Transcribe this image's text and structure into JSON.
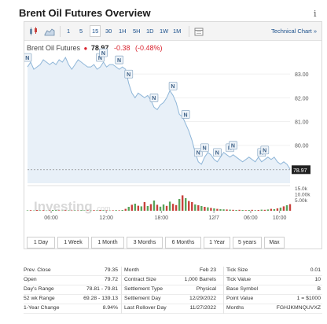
{
  "page": {
    "title": "Brent Oil Futures Overview",
    "info_icon": "i"
  },
  "toolbar": {
    "timeframes": [
      "1",
      "5",
      "15",
      "30",
      "1H",
      "5H",
      "1D",
      "1W",
      "1M"
    ],
    "active_timeframe": "15",
    "technical_link": "Technical Chart »",
    "icons": [
      "candlestick-icon",
      "area-chart-icon",
      "calendar-icon"
    ]
  },
  "symbol": {
    "name": "Brent Oil Futures",
    "price": "78.97",
    "change": "-0.38",
    "change_pct": "(-0.48%)"
  },
  "chart_data": {
    "type": "area",
    "series": [
      {
        "values": [
          83.3,
          83.5,
          83.2,
          83.3,
          83.4,
          83.6,
          83.5,
          83.4,
          83.5,
          83.4,
          83.6,
          83.5,
          83.7,
          83.4,
          83.2,
          83.4,
          83.6,
          83.5,
          83.4,
          83.3,
          83.3,
          83.4,
          83.2,
          83.3,
          83.5,
          83.3,
          83.4,
          83.4,
          83.3,
          83.2,
          83.3,
          83.2,
          82.6,
          82.2,
          82.0,
          82.2,
          82.1,
          82.0,
          82.1,
          81.9,
          81.6,
          81.5,
          81.7,
          81.8,
          82.0,
          82.3,
          82.1,
          81.8,
          81.3,
          81.2,
          80.9,
          80.6,
          80.2,
          79.7,
          79.3,
          79.2,
          79.5,
          79.7,
          79.6,
          79.4,
          79.3,
          79.5,
          79.7,
          79.6,
          79.5,
          79.6,
          79.5,
          79.4,
          79.3,
          79.4,
          79.5,
          79.4,
          79.3,
          79.5,
          79.3,
          79.4,
          79.5,
          79.4,
          79.5,
          79.3,
          79.2,
          79.3,
          79.2,
          79.0
        ]
      }
    ],
    "last_value": 78.97,
    "y_ticks": [
      "83.00",
      "82.00",
      "81.00",
      "80.00"
    ],
    "ylim": [
      78.4,
      83.7
    ],
    "x_ticks": [
      "06:00",
      "12:00",
      "18:00",
      "12/7",
      "06:00",
      "10:00"
    ],
    "volume_ticks": [
      "15.0k",
      "10.00k",
      "5.00k"
    ],
    "volume": [
      0.3,
      0.4,
      0.2,
      0.5,
      0.3,
      0.4,
      0.2,
      0.3,
      0.5,
      0.4,
      0.3,
      0.2,
      0.4,
      0.3,
      0.2,
      0.3,
      0.2,
      0.4,
      0.3,
      0.3,
      0.2,
      0.4,
      0.3,
      0.5,
      0.4,
      0.3,
      0.2,
      0.3,
      0.4,
      0.3,
      0.5,
      1.2,
      2.5,
      3.8,
      4.5,
      3.2,
      2.8,
      5.5,
      3.0,
      4.2,
      6.5,
      3.8,
      2.6,
      4.0,
      3.1,
      5.8,
      4.4,
      3.6,
      7.5,
      9.8,
      8.0,
      6.2,
      5.5,
      4.0,
      3.5,
      3.0,
      2.5,
      2.2,
      1.8,
      1.5,
      1.2,
      1.0,
      0.9,
      0.8,
      0.7,
      0.6,
      0.5,
      0.6,
      0.5,
      0.4,
      0.5,
      0.6,
      0.4,
      0.5,
      0.7,
      0.6,
      0.8,
      1.2,
      1.0,
      1.5,
      2.0,
      2.8,
      3.5,
      4.2
    ],
    "volume_up": [
      true,
      false,
      true,
      false,
      true,
      false,
      true,
      false,
      true,
      true,
      false,
      true,
      false,
      true,
      false,
      true,
      false,
      true,
      true,
      false,
      true,
      false,
      true,
      false,
      true,
      false,
      true,
      false,
      true,
      false,
      true,
      false,
      true,
      false,
      true,
      false,
      true,
      false,
      true,
      false,
      true,
      false,
      true,
      true,
      false,
      true,
      false,
      false,
      true,
      false,
      true,
      false,
      false,
      true,
      false,
      true,
      false,
      true,
      false,
      true,
      false,
      true,
      true,
      false,
      true,
      false,
      true,
      false,
      true,
      false,
      true,
      false,
      true,
      false,
      true,
      false,
      true,
      false,
      true,
      false,
      true,
      false,
      true,
      false
    ],
    "news_markers": [
      {
        "index": 0,
        "label": "N"
      },
      {
        "index": 23,
        "label": "N"
      },
      {
        "index": 24,
        "label": "N"
      },
      {
        "index": 29,
        "label": "N"
      },
      {
        "index": 32,
        "label": "N"
      },
      {
        "index": 40,
        "label": "N"
      },
      {
        "index": 46,
        "label": "N"
      },
      {
        "index": 50,
        "label": "N"
      },
      {
        "index": 54,
        "label": "N"
      },
      {
        "index": 56,
        "label": "N"
      },
      {
        "index": 60,
        "label": "N"
      },
      {
        "index": 64,
        "label": "N"
      },
      {
        "index": 65,
        "label": "N"
      },
      {
        "index": 74,
        "label": "N"
      },
      {
        "index": 75,
        "label": "N"
      }
    ],
    "watermark": "Investing",
    "watermark_suffix": ".com"
  },
  "ranges": [
    "1 Day",
    "1 Week",
    "1 Month",
    "3 Months",
    "6 Months",
    "1 Year",
    "5 years",
    "Max"
  ],
  "stats": {
    "rows": [
      [
        [
          "Prev. Close",
          "79.35"
        ],
        [
          "Month",
          "Feb 23"
        ],
        [
          "Tick Size",
          "0.01"
        ]
      ],
      [
        [
          "Open",
          "79.72"
        ],
        [
          "Contract Size",
          "1,000 Barrels"
        ],
        [
          "Tick Value",
          "10"
        ]
      ],
      [
        [
          "Day's Range",
          "78.81 - 79.81"
        ],
        [
          "Settlement Type",
          "Physical"
        ],
        [
          "Base Symbol",
          "B"
        ]
      ],
      [
        [
          "52 wk Range",
          "69.28 - 139.13"
        ],
        [
          "Settlement Day",
          "12/29/2022"
        ],
        [
          "Point Value",
          "1 = $1000"
        ]
      ],
      [
        [
          "1-Year Change",
          "8.94%"
        ],
        [
          "Last Rollover Day",
          "11/27/2022"
        ],
        [
          "Months",
          "FGHJKMNQUVXZ"
        ]
      ]
    ]
  },
  "colors": {
    "line": "#8fb6d8",
    "fill": "#e8f0f8",
    "negative": "#d9232e",
    "link": "#1a4f8b",
    "vol_up": "#5aa35a",
    "vol_down": "#c9413c"
  }
}
